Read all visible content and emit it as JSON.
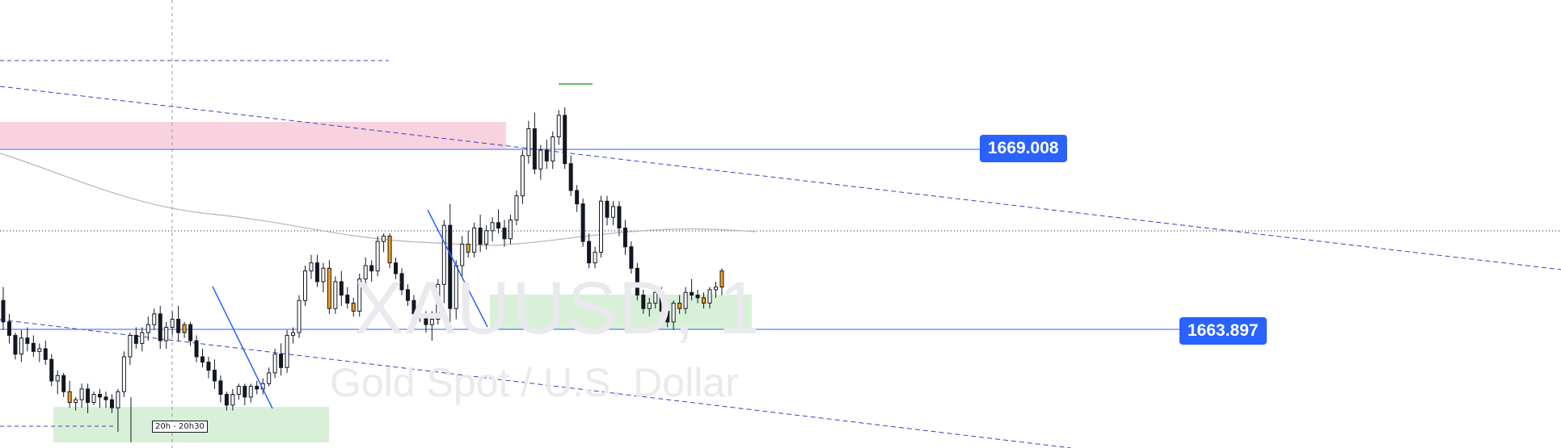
{
  "symbol_watermark": "XAUUSD, 1",
  "description_watermark": "Gold Spot / U.S. Dollar",
  "session_label": "20h - 20h30",
  "colors": {
    "bull_body": "#ffffff",
    "bear_body": "#131722",
    "highlight_body": "#f7a11a",
    "hline": "#2962ff",
    "trendline": "#3f3fbf",
    "resistance_zone": "#f8d3df",
    "demand_zone": "#d8f0d7",
    "moving_average": "#b2b5be"
  },
  "price_lines": [
    {
      "name": "upper-level",
      "value": "1669.008"
    },
    {
      "name": "lower-level",
      "value": "1663.897"
    }
  ],
  "chart_data": {
    "type": "candlestick",
    "symbol": "XAUUSD",
    "timeframe": "1",
    "ylim": [
      1659.9,
      1676.6
    ],
    "candles": [
      [
        1665.4,
        1665.9,
        1664.3,
        1664.6,
        "n"
      ],
      [
        1664.6,
        1664.9,
        1663.8,
        1664.1,
        "n"
      ],
      [
        1664.1,
        1664.2,
        1663.2,
        1663.4,
        "n"
      ],
      [
        1663.4,
        1664.3,
        1663.1,
        1664.0,
        "n"
      ],
      [
        1664.0,
        1664.4,
        1663.5,
        1663.8,
        "n"
      ],
      [
        1663.8,
        1664.1,
        1663.3,
        1663.5,
        "n"
      ],
      [
        1663.5,
        1663.8,
        1663.1,
        1663.6,
        "n"
      ],
      [
        1663.6,
        1663.9,
        1663.0,
        1663.2,
        "n"
      ],
      [
        1663.2,
        1663.4,
        1662.2,
        1662.4,
        "n"
      ],
      [
        1662.4,
        1662.8,
        1661.9,
        1662.6,
        "n"
      ],
      [
        1662.6,
        1662.7,
        1661.8,
        1662.0,
        "n"
      ],
      [
        1662.0,
        1662.4,
        1661.4,
        1661.6,
        "h"
      ],
      [
        1661.6,
        1661.8,
        1661.3,
        1661.7,
        "n"
      ],
      [
        1661.7,
        1662.3,
        1661.4,
        1662.1,
        "n"
      ],
      [
        1662.1,
        1662.3,
        1661.2,
        1661.6,
        "n"
      ],
      [
        1661.6,
        1662.0,
        1661.5,
        1661.9,
        "n"
      ],
      [
        1661.9,
        1662.1,
        1661.4,
        1661.8,
        "n"
      ],
      [
        1661.8,
        1662.0,
        1661.4,
        1661.7,
        "n"
      ],
      [
        1661.7,
        1661.9,
        1661.2,
        1661.4,
        "n"
      ],
      [
        1661.4,
        1662.1,
        1660.5,
        1662.0,
        "n"
      ],
      [
        1662.0,
        1663.5,
        1661.8,
        1663.3,
        "n"
      ],
      [
        1663.3,
        1664.2,
        1663.0,
        1664.1,
        "n"
      ],
      [
        1664.1,
        1664.4,
        1663.6,
        1663.8,
        "n"
      ],
      [
        1663.8,
        1664.4,
        1663.5,
        1664.2,
        "n"
      ],
      [
        1664.2,
        1664.8,
        1663.9,
        1664.5,
        "n"
      ],
      [
        1664.5,
        1665.1,
        1664.3,
        1664.9,
        "n"
      ],
      [
        1664.9,
        1665.2,
        1663.6,
        1663.9,
        "n"
      ],
      [
        1663.9,
        1664.6,
        1663.6,
        1664.4,
        "n"
      ],
      [
        1664.4,
        1665.0,
        1664.1,
        1664.7,
        "n"
      ],
      [
        1664.7,
        1665.2,
        1663.9,
        1664.2,
        "n"
      ],
      [
        1664.2,
        1664.6,
        1664.0,
        1664.5,
        "h"
      ],
      [
        1664.5,
        1664.6,
        1663.7,
        1663.9,
        "n"
      ],
      [
        1663.9,
        1664.1,
        1663.1,
        1663.3,
        "n"
      ],
      [
        1663.3,
        1663.6,
        1662.9,
        1663.1,
        "n"
      ],
      [
        1663.1,
        1663.3,
        1662.5,
        1662.8,
        "n"
      ],
      [
        1662.8,
        1663.2,
        1662.1,
        1662.4,
        "n"
      ],
      [
        1662.4,
        1662.6,
        1661.6,
        1661.9,
        "n"
      ],
      [
        1661.9,
        1662.0,
        1661.3,
        1661.5,
        "n"
      ],
      [
        1661.5,
        1662.1,
        1661.3,
        1661.9,
        "n"
      ],
      [
        1661.9,
        1662.3,
        1661.7,
        1662.2,
        "n"
      ],
      [
        1662.2,
        1662.3,
        1661.5,
        1661.8,
        "n"
      ],
      [
        1661.8,
        1662.3,
        1661.6,
        1662.2,
        "n"
      ],
      [
        1662.2,
        1662.4,
        1661.9,
        1662.1,
        "n"
      ],
      [
        1662.1,
        1662.5,
        1661.9,
        1662.3,
        "n"
      ],
      [
        1662.3,
        1662.9,
        1662.2,
        1662.7,
        "n"
      ],
      [
        1662.7,
        1663.6,
        1662.5,
        1663.4,
        "n"
      ],
      [
        1663.4,
        1663.8,
        1662.6,
        1662.9,
        "n"
      ],
      [
        1662.9,
        1664.3,
        1662.7,
        1664.1,
        "n"
      ],
      [
        1664.1,
        1664.4,
        1663.8,
        1664.2,
        "n"
      ],
      [
        1664.2,
        1665.6,
        1664.0,
        1665.4,
        "n"
      ],
      [
        1665.4,
        1666.7,
        1665.2,
        1666.5,
        "n"
      ],
      [
        1666.5,
        1667.1,
        1666.2,
        1666.8,
        "n"
      ],
      [
        1666.8,
        1667.1,
        1665.9,
        1666.1,
        "n"
      ],
      [
        1666.1,
        1666.8,
        1665.7,
        1666.6,
        "n"
      ],
      [
        1666.6,
        1666.9,
        1664.9,
        1665.1,
        "h"
      ],
      [
        1665.1,
        1666.3,
        1664.9,
        1666.1,
        "n"
      ],
      [
        1666.1,
        1666.5,
        1665.2,
        1665.6,
        "n"
      ],
      [
        1665.6,
        1665.9,
        1665.1,
        1665.3,
        "n"
      ],
      [
        1665.3,
        1665.5,
        1664.8,
        1665.0,
        "h"
      ],
      [
        1665.0,
        1666.4,
        1664.8,
        1666.2,
        "n"
      ],
      [
        1666.2,
        1667.0,
        1666.0,
        1666.7,
        "n"
      ],
      [
        1666.7,
        1666.9,
        1666.1,
        1666.5,
        "n"
      ],
      [
        1666.5,
        1667.8,
        1666.3,
        1667.6,
        "n"
      ],
      [
        1667.6,
        1667.9,
        1667.2,
        1667.8,
        "n"
      ],
      [
        1667.8,
        1667.9,
        1666.6,
        1666.8,
        "h"
      ],
      [
        1666.8,
        1667.0,
        1666.2,
        1666.4,
        "n"
      ],
      [
        1666.4,
        1666.6,
        1665.6,
        1665.8,
        "n"
      ],
      [
        1665.8,
        1666.0,
        1665.2,
        1665.4,
        "n"
      ],
      [
        1665.4,
        1665.6,
        1664.7,
        1664.9,
        "n"
      ],
      [
        1664.9,
        1665.1,
        1664.6,
        1664.8,
        "n"
      ],
      [
        1664.8,
        1665.0,
        1664.2,
        1664.5,
        "n"
      ],
      [
        1664.5,
        1665.0,
        1663.9,
        1664.7,
        "n"
      ],
      [
        1664.7,
        1666.2,
        1664.5,
        1666.0,
        "n"
      ],
      [
        1666.0,
        1668.4,
        1665.3,
        1668.2,
        "n"
      ],
      [
        1668.2,
        1669.0,
        1664.2,
        1665.1,
        "n"
      ],
      [
        1665.1,
        1666.9,
        1664.7,
        1666.7,
        "n"
      ],
      [
        1666.7,
        1667.8,
        1666.3,
        1667.5,
        "n"
      ],
      [
        1667.5,
        1668.0,
        1667.0,
        1667.2,
        "h"
      ],
      [
        1667.2,
        1668.3,
        1667.0,
        1668.1,
        "n"
      ],
      [
        1668.1,
        1668.6,
        1667.2,
        1667.5,
        "n"
      ],
      [
        1667.5,
        1668.2,
        1667.3,
        1668.0,
        "n"
      ],
      [
        1668.0,
        1668.5,
        1667.6,
        1668.3,
        "n"
      ],
      [
        1668.3,
        1668.8,
        1667.9,
        1668.1,
        "n"
      ],
      [
        1668.1,
        1668.4,
        1667.4,
        1667.7,
        "n"
      ],
      [
        1667.7,
        1668.6,
        1667.5,
        1668.4,
        "n"
      ],
      [
        1668.4,
        1669.5,
        1668.2,
        1669.3,
        "n"
      ],
      [
        1669.3,
        1671.0,
        1669.0,
        1670.8,
        "n"
      ],
      [
        1670.8,
        1672.1,
        1670.5,
        1671.8,
        "n"
      ],
      [
        1671.8,
        1672.4,
        1670.1,
        1670.3,
        "n"
      ],
      [
        1670.3,
        1671.2,
        1669.9,
        1671.0,
        "n"
      ],
      [
        1671.0,
        1671.4,
        1670.3,
        1670.6,
        "n"
      ],
      [
        1670.6,
        1671.7,
        1670.3,
        1671.5,
        "n"
      ],
      [
        1671.5,
        1672.5,
        1671.2,
        1672.3,
        "n"
      ],
      [
        1672.3,
        1672.6,
        1670.3,
        1670.5,
        "n"
      ],
      [
        1670.5,
        1670.8,
        1669.3,
        1669.5,
        "n"
      ],
      [
        1669.5,
        1669.7,
        1668.7,
        1669.0,
        "n"
      ],
      [
        1669.0,
        1669.2,
        1667.4,
        1667.6,
        "n"
      ],
      [
        1667.6,
        1667.9,
        1666.6,
        1666.8,
        "n"
      ],
      [
        1666.8,
        1667.4,
        1666.6,
        1667.2,
        "n"
      ],
      [
        1667.2,
        1669.3,
        1667.0,
        1669.1,
        "n"
      ],
      [
        1669.1,
        1669.3,
        1668.2,
        1668.5,
        "n"
      ],
      [
        1668.5,
        1669.1,
        1668.2,
        1668.9,
        "n"
      ],
      [
        1668.9,
        1669.1,
        1667.8,
        1668.1,
        "n"
      ],
      [
        1668.1,
        1668.4,
        1667.1,
        1667.4,
        "n"
      ],
      [
        1667.4,
        1667.6,
        1666.4,
        1666.6,
        "n"
      ],
      [
        1666.6,
        1666.8,
        1665.4,
        1665.6,
        "n"
      ],
      [
        1665.6,
        1665.8,
        1664.9,
        1665.1,
        "n"
      ],
      [
        1665.1,
        1665.5,
        1664.8,
        1665.3,
        "n"
      ],
      [
        1665.3,
        1665.9,
        1665.1,
        1665.7,
        "n"
      ],
      [
        1665.7,
        1665.9,
        1664.8,
        1665.0,
        "n"
      ],
      [
        1665.0,
        1665.4,
        1664.4,
        1664.6,
        "n"
      ],
      [
        1664.6,
        1665.4,
        1664.3,
        1665.3,
        "n"
      ],
      [
        1665.3,
        1665.6,
        1664.9,
        1665.1,
        "h"
      ],
      [
        1665.1,
        1665.9,
        1664.9,
        1665.7,
        "n"
      ],
      [
        1665.7,
        1666.2,
        1665.4,
        1665.6,
        "n"
      ],
      [
        1665.6,
        1665.8,
        1665.3,
        1665.5,
        "n"
      ],
      [
        1665.5,
        1665.7,
        1665.1,
        1665.3,
        "h"
      ],
      [
        1665.3,
        1665.9,
        1665.1,
        1665.8,
        "n"
      ],
      [
        1665.8,
        1666.1,
        1665.5,
        1665.9,
        "n"
      ],
      [
        1665.9,
        1666.6,
        1665.6,
        1666.5,
        "h"
      ]
    ]
  }
}
